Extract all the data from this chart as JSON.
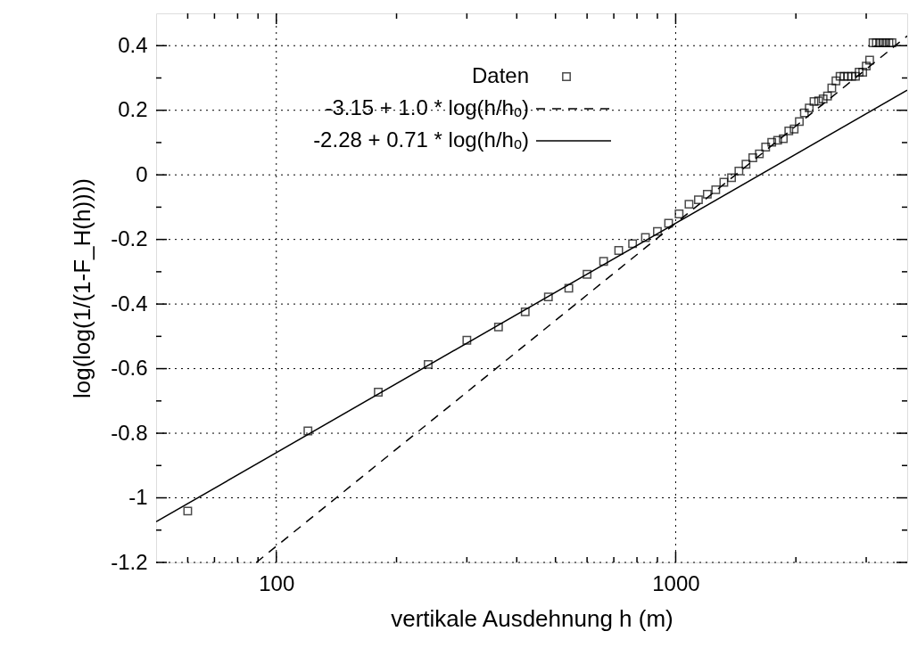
{
  "chart_data": {
    "type": "scatter",
    "xlabel": "vertikale Ausdehnung h (m)",
    "ylabel": "log(log(1/(1-F_H(h))))",
    "log": "x",
    "grid": true,
    "legend": "top",
    "xlim": [
      50,
      3800
    ],
    "ylim": [
      -1.2,
      0.5
    ],
    "xticks": [
      {
        "value": 60,
        "label": null
      },
      {
        "value": 70,
        "label": null
      },
      {
        "value": 80,
        "label": null
      },
      {
        "value": 90,
        "label": null
      },
      100,
      {
        "value": 200,
        "label": null
      },
      {
        "value": 300,
        "label": null
      },
      {
        "value": 400,
        "label": null
      },
      {
        "value": 500,
        "label": null
      },
      {
        "value": 600,
        "label": null
      },
      {
        "value": 700,
        "label": null
      },
      {
        "value": 800,
        "label": null
      },
      {
        "value": 900,
        "label": null
      },
      1000,
      {
        "value": 2000,
        "label": null
      },
      {
        "value": 3000,
        "label": null
      }
    ],
    "yticks": [
      -1.2,
      {
        "value": -1.1,
        "label": null
      },
      -1,
      {
        "value": -0.9,
        "label": null
      },
      -0.8,
      {
        "value": -0.7,
        "label": null
      },
      -0.6,
      {
        "value": -0.5,
        "label": null
      },
      -0.4,
      {
        "value": -0.3,
        "label": null
      },
      -0.2,
      {
        "value": -0.1,
        "label": null
      },
      0,
      {
        "value": 0.1,
        "label": null
      },
      0.2,
      {
        "value": 0.3,
        "label": null
      },
      0.4
    ],
    "series": [
      {
        "name": "Daten",
        "marker": "square",
        "color": "#000000",
        "x": [
          60,
          120,
          180,
          240,
          300,
          360,
          420,
          480,
          540,
          600,
          660,
          720,
          780,
          840,
          900,
          960,
          1020,
          1080,
          1140,
          1200,
          1260,
          1320,
          1380,
          1440,
          1500,
          1560,
          1620,
          1680,
          1740,
          1800,
          1860,
          1920,
          1980,
          2040,
          2100,
          2160,
          2220,
          2280,
          2340,
          2400,
          2460,
          2520,
          2580,
          2640,
          2700,
          2760,
          2820,
          2880,
          2940,
          3000,
          3060,
          3120,
          3180,
          3240,
          3300,
          3360,
          3420,
          3480
        ],
        "values": [
          -1.041,
          -0.793,
          -0.673,
          -0.587,
          -0.512,
          -0.471,
          -0.424,
          -0.378,
          -0.351,
          -0.308,
          -0.268,
          -0.234,
          -0.213,
          -0.194,
          -0.175,
          -0.15,
          -0.121,
          -0.091,
          -0.077,
          -0.06,
          -0.046,
          -0.023,
          -0.009,
          0.012,
          0.033,
          0.053,
          0.065,
          0.086,
          0.101,
          0.107,
          0.112,
          0.136,
          0.142,
          0.165,
          0.192,
          0.207,
          0.227,
          0.229,
          0.235,
          0.244,
          0.269,
          0.291,
          0.305,
          0.305,
          0.305,
          0.305,
          0.305,
          0.318,
          0.318,
          0.337,
          0.355,
          0.409,
          0.409,
          0.409,
          0.409,
          0.409,
          0.409,
          0.409
        ]
      },
      {
        "name": "-3.15 + 1.0 * log(h/hₒ)",
        "type": "line",
        "marker": "none",
        "line_style": "dashed",
        "color": "#000000",
        "x": [
          89.1,
          3800
        ],
        "values": [
          -1.2,
          0.43
        ]
      },
      {
        "name": "-2.28 + 0.71 * log(h/hₒ)",
        "type": "line",
        "marker": "none",
        "line_style": "solid",
        "color": "#000000",
        "x": [
          50,
          3800
        ],
        "values": [
          -1.074,
          0.262
        ]
      }
    ]
  }
}
